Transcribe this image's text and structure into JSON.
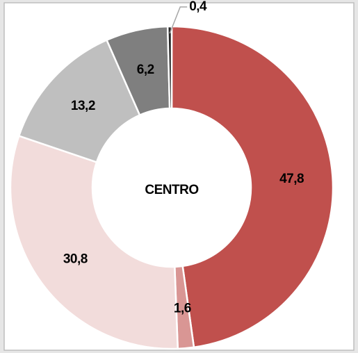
{
  "chart_data": {
    "type": "donut",
    "center_label": "CENTRO",
    "values": [
      47.8,
      1.6,
      30.8,
      13.2,
      6.2,
      0.4
    ],
    "value_labels": [
      "47,8",
      "1,6",
      "30,8",
      "13,2",
      "6,2",
      "0,4"
    ],
    "colors": [
      "#c0504d",
      "#d99694",
      "#f2dcdb",
      "#bfbfbf",
      "#7f7f7f",
      "#262626"
    ]
  }
}
